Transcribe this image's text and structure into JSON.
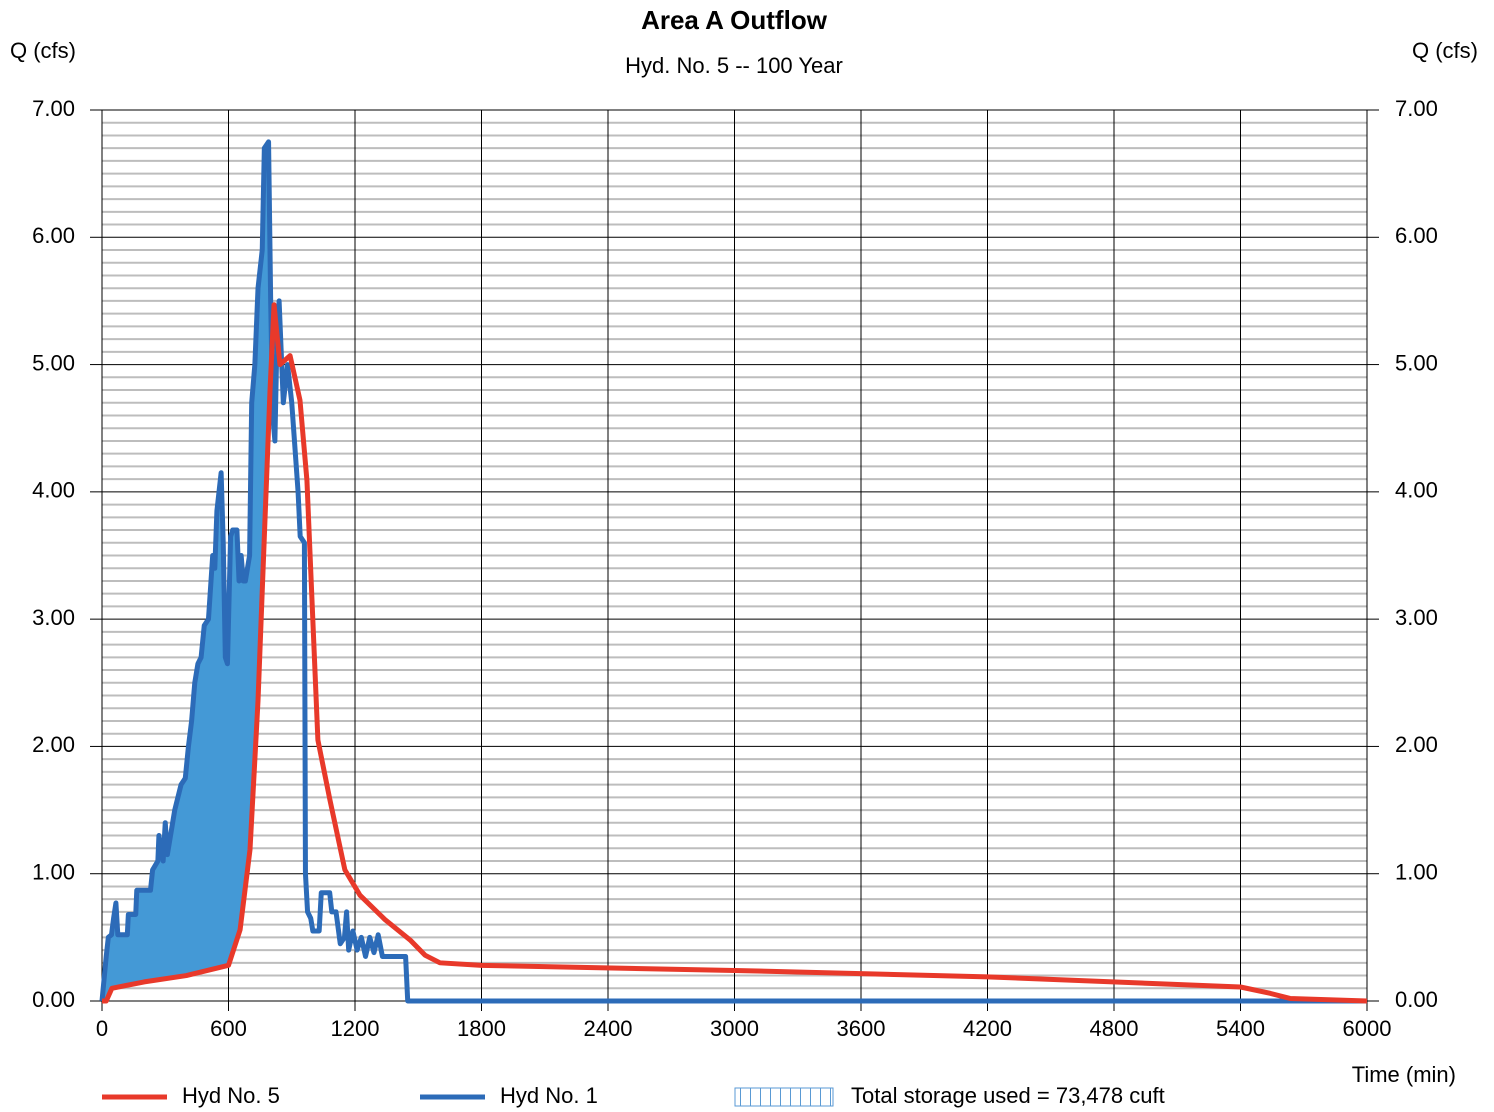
{
  "chart_data": {
    "type": "line",
    "title": "Area A Outflow",
    "subtitle": "Hyd. No. 5 -- 100 Year",
    "y_label": "Q (cfs)",
    "y2_label": "Q (cfs)",
    "x_label": "Time (min)",
    "xlim": [
      0,
      6000
    ],
    "xticks": [
      0,
      600,
      1200,
      1800,
      2400,
      3000,
      3600,
      4200,
      4800,
      5400,
      6000
    ],
    "ylim": [
      0,
      7
    ],
    "yticks": [
      {
        "value": 0,
        "label": "0.00"
      },
      {
        "value": 1,
        "label": "1.00"
      },
      {
        "value": 2,
        "label": "2.00"
      },
      {
        "value": 3,
        "label": "3.00"
      },
      {
        "value": 4,
        "label": "4.00"
      },
      {
        "value": 5,
        "label": "5.00"
      },
      {
        "value": 6,
        "label": "6.00"
      },
      {
        "value": 7,
        "label": "7.00"
      }
    ],
    "y2lim": [
      0,
      7
    ],
    "y2ticks": [
      {
        "value": 0,
        "label": "0.00"
      },
      {
        "value": 1,
        "label": "1.00"
      },
      {
        "value": 2,
        "label": "2.00"
      },
      {
        "value": 3,
        "label": "3.00"
      },
      {
        "value": 4,
        "label": "4.00"
      },
      {
        "value": 5,
        "label": "5.00"
      },
      {
        "value": 6,
        "label": "6.00"
      },
      {
        "value": 7,
        "label": "7.00"
      }
    ],
    "grid": true,
    "minor_grid_step": 0.1,
    "storage_fill_color": "#4499d6",
    "storage_label": "Total storage used = 73,478 cuft",
    "series": [
      {
        "name": "Hyd No. 5",
        "color": "#e8392a",
        "x": [
          0,
          20,
          47,
          200,
          400,
          600,
          655,
          702,
          740,
          773,
          797,
          816,
          844,
          892,
          939,
          972,
          996,
          1024,
          1081,
          1152,
          1224,
          1342,
          1461,
          1532,
          1603,
          1800,
          3000,
          4200,
          5400,
          5541,
          5635,
          6000
        ],
        "values": [
          0,
          0,
          0.1,
          0.15,
          0.2,
          0.28,
          0.56,
          1.19,
          2.36,
          3.78,
          4.8,
          5.47,
          5.0,
          5.07,
          4.72,
          4.09,
          3.15,
          2.05,
          1.58,
          1.03,
          0.83,
          0.64,
          0.48,
          0.36,
          0.3,
          0.28,
          0.24,
          0.19,
          0.11,
          0.06,
          0.02,
          0
        ]
      },
      {
        "name": "Hyd No. 1",
        "color": "#2c6bb8",
        "x": [
          0,
          20,
          30,
          45,
          55,
          66,
          75,
          120,
          125,
          160,
          165,
          230,
          240,
          265,
          270,
          290,
          300,
          310,
          330,
          345,
          375,
          395,
          410,
          425,
          440,
          455,
          470,
          485,
          505,
          525,
          535,
          545,
          565,
          575,
          585,
          595,
          610,
          620,
          640,
          650,
          660,
          670,
          680,
          700,
          710,
          725,
          740,
          760,
          770,
          790,
          800,
          810,
          820,
          830,
          840,
          860,
          880,
          900,
          930,
          940,
          960,
          965,
          975,
          990,
          1000,
          1030,
          1040,
          1080,
          1090,
          1110,
          1130,
          1150,
          1160,
          1170,
          1190,
          1210,
          1230,
          1250,
          1270,
          1290,
          1310,
          1330,
          1350,
          1440,
          1450,
          6000
        ],
        "values": [
          0,
          0.35,
          0.5,
          0.52,
          0.65,
          0.77,
          0.52,
          0.52,
          0.68,
          0.68,
          0.87,
          0.87,
          1.03,
          1.1,
          1.3,
          1.1,
          1.4,
          1.15,
          1.35,
          1.5,
          1.7,
          1.75,
          2.0,
          2.2,
          2.5,
          2.65,
          2.7,
          2.95,
          3.0,
          3.5,
          3.4,
          3.85,
          4.15,
          3.6,
          2.7,
          2.65,
          3.65,
          3.7,
          3.7,
          3.3,
          3.5,
          3.3,
          3.3,
          3.5,
          4.7,
          5.0,
          5.6,
          5.9,
          6.7,
          6.75,
          5.5,
          4.6,
          4.4,
          5.2,
          5.5,
          4.7,
          5.0,
          4.7,
          4.0,
          3.65,
          3.6,
          1.0,
          0.7,
          0.65,
          0.55,
          0.55,
          0.85,
          0.85,
          0.7,
          0.7,
          0.45,
          0.5,
          0.7,
          0.4,
          0.55,
          0.4,
          0.5,
          0.35,
          0.5,
          0.38,
          0.52,
          0.35,
          0.35,
          0.35,
          0,
          0
        ]
      }
    ]
  }
}
